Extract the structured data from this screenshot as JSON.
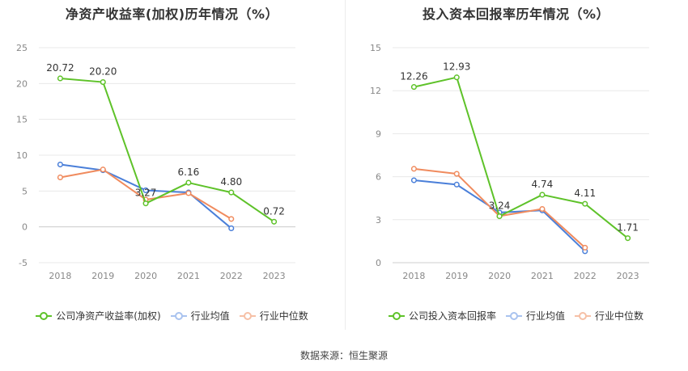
{
  "source": "数据来源：恒生聚源",
  "colors": {
    "company": "#5ec229",
    "industry_avg": "#4a7fd9",
    "industry_median": "#f08b5e",
    "grid": "#e8e8e8",
    "axis_text": "#888888"
  },
  "chart_data": [
    {
      "type": "line",
      "title": "净资产收益率(加权)历年情况（%）",
      "categories": [
        "2018",
        "2019",
        "2020",
        "2021",
        "2022",
        "2023"
      ],
      "ylim": [
        -5,
        25
      ],
      "yticks": [
        "-5",
        "0",
        "5",
        "10",
        "15",
        "20",
        "25"
      ],
      "grid": true,
      "legend": "bottom",
      "series": [
        {
          "name": "公司净资产收益率(加权)",
          "color": "#5ec229",
          "values": [
            20.72,
            20.2,
            3.27,
            6.16,
            4.8,
            0.72
          ],
          "labels": [
            "20.72",
            "20.20",
            "3.27",
            "6.16",
            "4.80",
            "0.72"
          ]
        },
        {
          "name": "行业均值",
          "color": "#4a7fd9",
          "values": [
            8.7,
            7.9,
            5.1,
            4.8,
            -0.2,
            null
          ]
        },
        {
          "name": "行业中位数",
          "color": "#f08b5e",
          "values": [
            6.9,
            8.0,
            3.8,
            4.7,
            1.1,
            null
          ]
        }
      ]
    },
    {
      "type": "line",
      "title": "投入资本回报率历年情况（%）",
      "categories": [
        "2018",
        "2019",
        "2020",
        "2021",
        "2022",
        "2023"
      ],
      "ylim": [
        0,
        15
      ],
      "yticks": [
        "0",
        "3",
        "6",
        "9",
        "12",
        "15"
      ],
      "grid": true,
      "legend": "bottom",
      "series": [
        {
          "name": "公司投入资本回报率",
          "color": "#5ec229",
          "values": [
            12.26,
            12.93,
            3.24,
            4.74,
            4.11,
            1.71
          ],
          "labels": [
            "12.26",
            "12.93",
            "3.24",
            "4.74",
            "4.11",
            "1.71"
          ]
        },
        {
          "name": "行业均值",
          "color": "#4a7fd9",
          "values": [
            5.75,
            5.45,
            3.5,
            3.65,
            0.8,
            null
          ]
        },
        {
          "name": "行业中位数",
          "color": "#f08b5e",
          "values": [
            6.55,
            6.2,
            3.25,
            3.75,
            1.05,
            null
          ]
        }
      ]
    }
  ]
}
